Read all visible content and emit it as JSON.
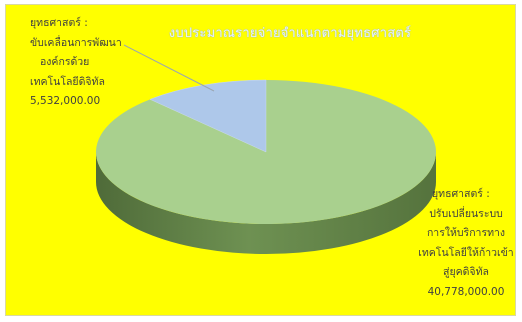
{
  "chart_data": {
    "type": "pie",
    "style": "3d",
    "title": "งบประมาณรายจ่ายจำแนกตามยุทธศาสตร์",
    "slices": [
      {
        "label_lines": [
          "ยุทธศาสตร์ :",
          "ขับเคลื่อนการพัฒนา",
          "องค์กรด้วย",
          "เทคโนโลยีดิจิทัล",
          "5,532,000.00"
        ],
        "value": 5532000,
        "color": "#aec8ea",
        "side_color": "#7f9fcc"
      },
      {
        "label_lines": [
          "ยุทธศาสตร์ :",
          "ปรับเปลี่ยนระบบ",
          "การให้บริการทาง",
          "เทคโนโลยีให้ก้าวเข้า",
          "สู่ยุคดิจิทัล",
          "40,778,000.00"
        ],
        "value": 40778000,
        "color": "#a9d08e",
        "side_color": "#6b8e4e"
      }
    ],
    "background": "#ffff00",
    "legend": "none"
  }
}
